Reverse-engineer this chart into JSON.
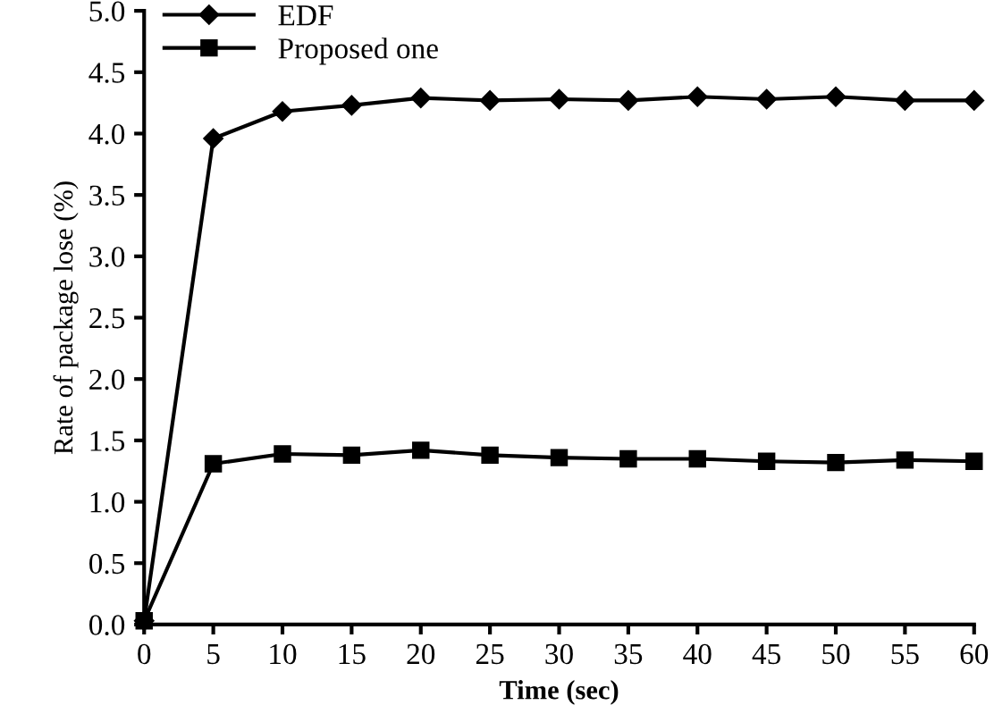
{
  "chart_data": {
    "type": "line",
    "xlabel": "Time (sec)",
    "ylabel": "Rate of package lose (%)",
    "x": [
      0,
      5,
      10,
      15,
      20,
      25,
      30,
      35,
      40,
      45,
      50,
      55,
      60
    ],
    "series": [
      {
        "name": "EDF",
        "color": "#000000",
        "marker": "diamond",
        "values": [
          0.03,
          3.96,
          4.18,
          4.23,
          4.29,
          4.27,
          4.28,
          4.27,
          4.3,
          4.28,
          4.3,
          4.27,
          4.27
        ]
      },
      {
        "name": "Proposed one",
        "color": "#000000",
        "marker": "square",
        "values": [
          0.03,
          1.31,
          1.39,
          1.38,
          1.42,
          1.38,
          1.36,
          1.35,
          1.35,
          1.33,
          1.32,
          1.34,
          1.33
        ]
      }
    ],
    "xlim": [
      0,
      60
    ],
    "xticks": [
      0,
      5,
      10,
      15,
      20,
      25,
      30,
      35,
      40,
      45,
      50,
      55,
      60
    ],
    "ylim": [
      0,
      5
    ],
    "yticks": [
      {
        "value": 0,
        "label": "0.0"
      },
      {
        "value": 0.5,
        "label": "0.5"
      },
      {
        "value": 1,
        "label": "1.0"
      },
      {
        "value": 1.5,
        "label": "1.5"
      },
      {
        "value": 2,
        "label": "2.0"
      },
      {
        "value": 2.5,
        "label": "2.5"
      },
      {
        "value": 3,
        "label": "3.0"
      },
      {
        "value": 3.5,
        "label": "3.5"
      },
      {
        "value": 4,
        "label": "4.0"
      },
      {
        "value": 4.5,
        "label": "4.5"
      },
      {
        "value": 5,
        "label": "5.0"
      }
    ],
    "grid": false,
    "legend": "top left",
    "line_style": "solid"
  }
}
